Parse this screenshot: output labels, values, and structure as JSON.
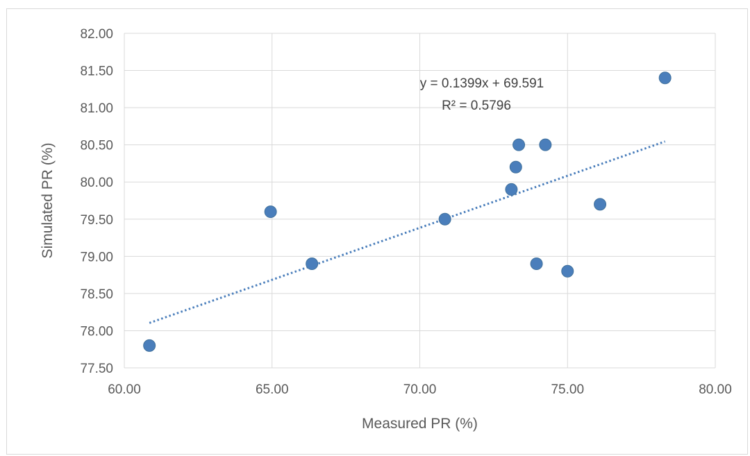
{
  "chart_data": {
    "type": "scatter",
    "title": "",
    "xlabel": "Measured PR (%)",
    "ylabel": "Simulated PR (%)",
    "xlim": [
      60,
      80
    ],
    "ylim": [
      77.5,
      82
    ],
    "x_ticks": [
      "60.00",
      "65.00",
      "70.00",
      "75.00",
      "80.00"
    ],
    "y_ticks": [
      "77.50",
      "78.00",
      "78.50",
      "79.00",
      "79.50",
      "80.00",
      "80.50",
      "81.00",
      "81.50",
      "82.00"
    ],
    "grid": true,
    "marker_color": "#4a7ebb",
    "trendline_color": "#4a7ebb",
    "points": [
      {
        "x": 60.85,
        "y": 77.8
      },
      {
        "x": 64.95,
        "y": 79.6
      },
      {
        "x": 66.35,
        "y": 78.9
      },
      {
        "x": 70.85,
        "y": 79.5
      },
      {
        "x": 73.1,
        "y": 79.9
      },
      {
        "x": 73.25,
        "y": 80.2
      },
      {
        "x": 73.35,
        "y": 80.5
      },
      {
        "x": 73.95,
        "y": 78.9
      },
      {
        "x": 74.25,
        "y": 80.5
      },
      {
        "x": 75.0,
        "y": 78.8
      },
      {
        "x": 76.1,
        "y": 79.7
      },
      {
        "x": 78.3,
        "y": 81.4
      }
    ],
    "trendline": {
      "type": "linear",
      "slope": 0.1399,
      "intercept": 69.591,
      "x_range": [
        60.85,
        78.3
      ],
      "equation_label": "y = 0.1399x + 69.591",
      "r2_label": "R² = 0.5796"
    }
  }
}
